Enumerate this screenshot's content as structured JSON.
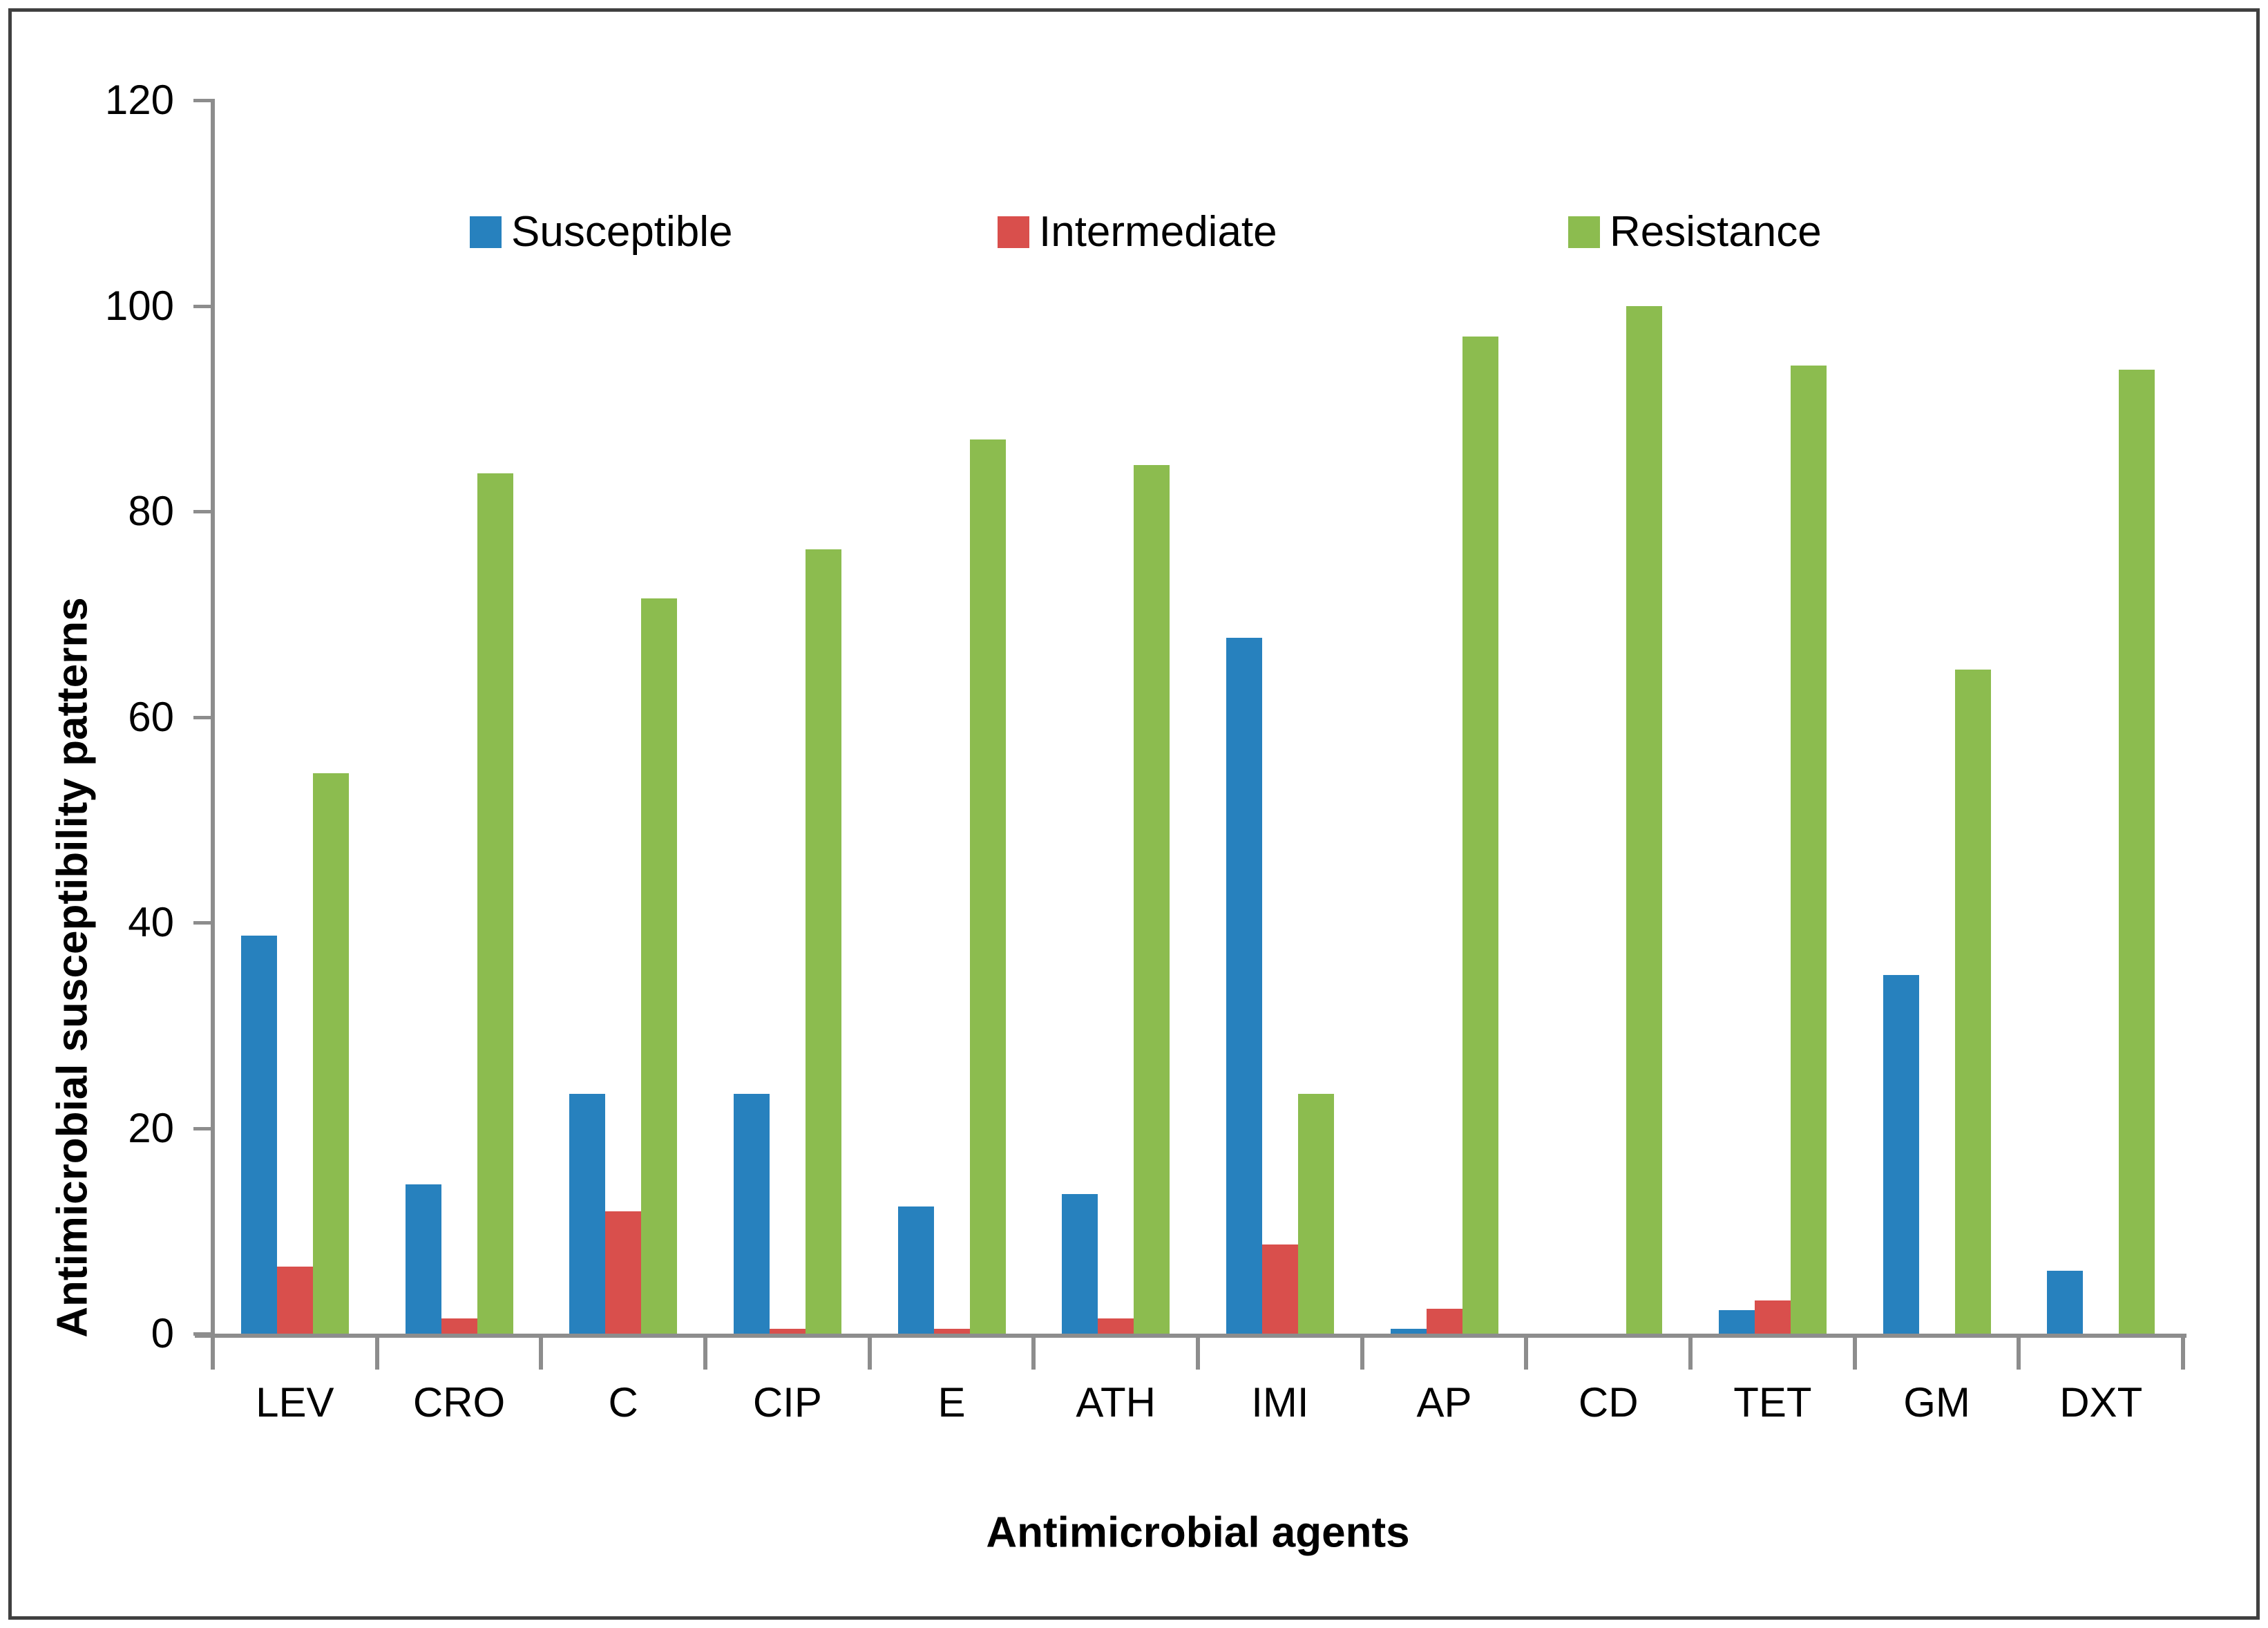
{
  "figure": {
    "background": "#FFFFFF",
    "border_color": "#404040",
    "axis_color": "#8D8D8D",
    "text_color": "#000000"
  },
  "chart_data": {
    "type": "bar",
    "title": "",
    "xlabel": "Antimicrobial agents",
    "ylabel": "Antimicrobial susceptibility patterns",
    "categories": [
      "LEV",
      "CRO",
      "C",
      "CIP",
      "E",
      "ATH",
      "IMI",
      "AP",
      "CD",
      "TET",
      "GM",
      "DXT"
    ],
    "series": [
      {
        "name": "Susceptible",
        "color": "#2781BE",
        "values": [
          38.7,
          14.5,
          23.3,
          23.3,
          12.4,
          13.6,
          67.7,
          0.5,
          0,
          2.3,
          34.9,
          6.1
        ]
      },
      {
        "name": "Intermediate",
        "color": "#D94F4C",
        "values": [
          6.5,
          1.5,
          11.9,
          0.5,
          0.5,
          1.5,
          8.7,
          2.4,
          0,
          3.2,
          0,
          0
        ]
      },
      {
        "name": "Resistance",
        "color": "#8CBC4F",
        "values": [
          54.5,
          83.7,
          71.5,
          76.3,
          87.0,
          84.5,
          23.3,
          97.0,
          100,
          94.2,
          64.6,
          93.8
        ]
      }
    ],
    "ylim": [
      0,
      120
    ],
    "ytick_step": 20,
    "ytick_labels": [
      "0",
      "20",
      "40",
      "60",
      "80",
      "100",
      "120"
    ],
    "grid": false,
    "legend_position": "top-inside"
  }
}
